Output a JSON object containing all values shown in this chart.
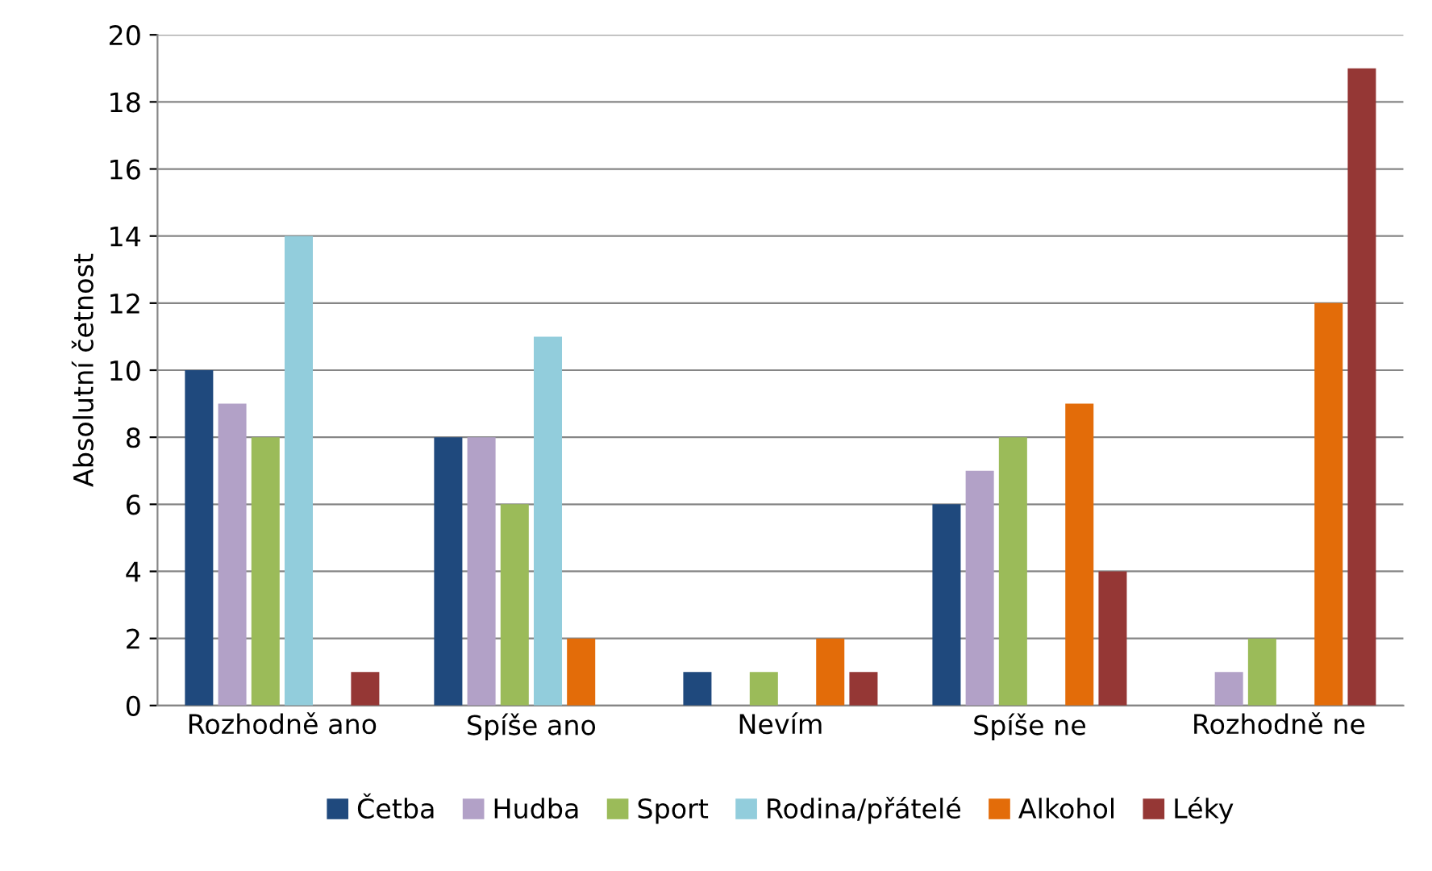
{
  "chart_data": {
    "type": "bar",
    "ylabel": "Absolutní četnost",
    "categories": [
      "Rozhodně ano",
      "Spíše ano",
      "Nevím",
      "Spíše ne",
      "Rozhodně ne"
    ],
    "series": [
      {
        "name": "Četba",
        "color": "#1f497d",
        "values": [
          10,
          8,
          1,
          6,
          0
        ]
      },
      {
        "name": "Hudba",
        "color": "#b2a1c7",
        "values": [
          9,
          8,
          0,
          7,
          1
        ]
      },
      {
        "name": "Sport",
        "color": "#9bbb59",
        "values": [
          8,
          6,
          1,
          8,
          2
        ]
      },
      {
        "name": "Rodina/přátelé",
        "color": "#92cddc",
        "values": [
          14,
          11,
          0,
          0,
          0
        ]
      },
      {
        "name": "Alkohol",
        "color": "#e36c09",
        "values": [
          0,
          2,
          2,
          9,
          12
        ]
      },
      {
        "name": "Léky",
        "color": "#953735",
        "values": [
          1,
          0,
          1,
          4,
          19
        ]
      }
    ],
    "ylim": [
      0,
      20
    ],
    "yticks": [
      0,
      2,
      4,
      6,
      8,
      10,
      12,
      14,
      16,
      18,
      20
    ],
    "grid": "y",
    "legend": "bottom"
  }
}
